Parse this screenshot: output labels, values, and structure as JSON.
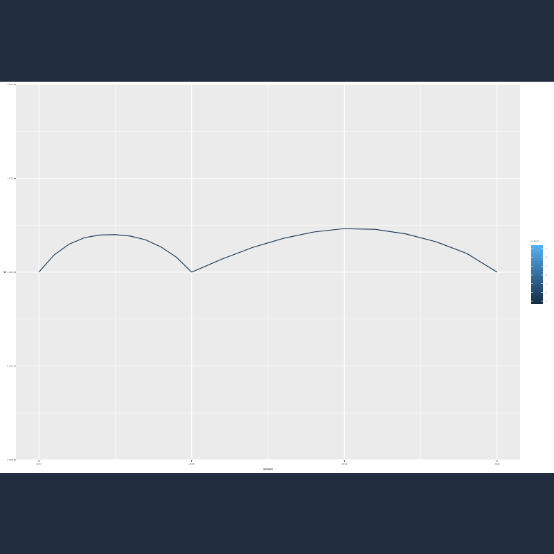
{
  "chart_data": {
    "type": "line",
    "xlabel": "season",
    "ylabel": "w",
    "x_ticks": [
      "2017",
      "2018",
      "2019",
      "2020"
    ],
    "y_ticks": [
      "0.950",
      "0.975",
      "1.000",
      "1.025",
      "1.050"
    ],
    "xlim": [
      2016.85,
      2020.15
    ],
    "ylim": [
      0.95,
      1.05
    ],
    "grid": true,
    "legend": {
      "title": "ps_team",
      "type": "colorbar",
      "placement": "right",
      "labels": [
        "1",
        "2",
        "3",
        "4",
        "5",
        "6",
        "7"
      ],
      "low_color": "#132b43",
      "high_color": "#56b1f7"
    },
    "line_color": "#132b43",
    "series": [
      {
        "x": [
          2017.0,
          2017.1,
          2017.2,
          2017.3,
          2017.4,
          2017.5,
          2017.6,
          2017.7,
          2017.8,
          2017.9,
          2018.0
        ],
        "y": [
          1.0,
          1.0046,
          1.0075,
          1.0092,
          1.0099,
          1.01,
          1.0096,
          1.0086,
          1.0067,
          1.004,
          1.0
        ]
      },
      {
        "x": [
          2018.0,
          2018.2,
          2018.4,
          2018.6,
          2018.8,
          2019.0,
          2019.2,
          2019.4,
          2019.6,
          2019.8,
          2020.0
        ],
        "y": [
          1.0,
          1.0035,
          1.0066,
          1.009,
          1.0107,
          1.0116,
          1.0114,
          1.0102,
          1.0081,
          1.005,
          1.0
        ]
      }
    ]
  }
}
